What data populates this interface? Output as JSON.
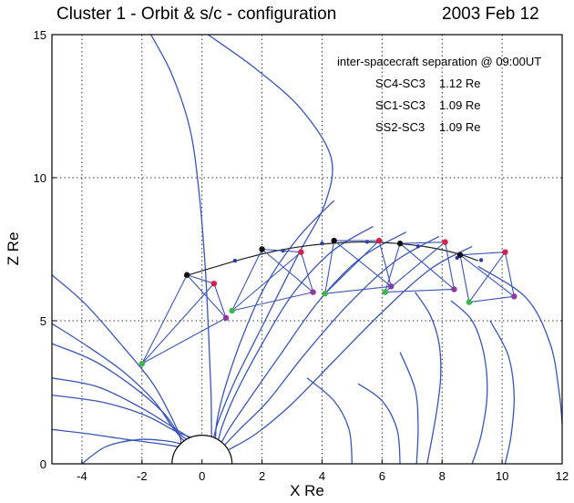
{
  "header": {
    "title": "Cluster 1 - Orbit & s/c - configuration",
    "date": "2003 Feb 12"
  },
  "annotation": {
    "heading": "inter-spacecraft separation @ 09:00UT",
    "rows": [
      {
        "pair": "SC4-SC3",
        "value": "1.12 Re"
      },
      {
        "pair": "SC1-SC3",
        "value": "1.09 Re"
      },
      {
        "pair": "SS2-SC3",
        "value": "1.09 Re"
      }
    ]
  },
  "colors": {
    "field_lines": "#3a55b8",
    "orbit": "#222222",
    "tetrahedron": "#3a55b8",
    "grid": "#333333",
    "sc_black": "#111111",
    "sc_red": "#d4204a",
    "sc_green": "#3cb54a",
    "sc_purple": "#8e3aa0",
    "sc_blue": "#2a3aa8"
  },
  "chart_data": {
    "type": "line",
    "xlabel": "X Re",
    "ylabel": "Z Re",
    "xlim": [
      -5,
      12
    ],
    "ylim": [
      0,
      15
    ],
    "xticks": [
      -4,
      -2,
      0,
      2,
      4,
      6,
      8,
      10,
      12
    ],
    "yticks": [
      0,
      5,
      10,
      15
    ],
    "grid": true,
    "earth": {
      "center": [
        0,
        0
      ],
      "radius": 1
    },
    "orbit": [
      [
        -0.6,
        6.55
      ],
      [
        0.5,
        6.9
      ],
      [
        1.5,
        7.2
      ],
      [
        2.5,
        7.45
      ],
      [
        3.5,
        7.62
      ],
      [
        4.5,
        7.72
      ],
      [
        5.5,
        7.75
      ],
      [
        6.5,
        7.7
      ],
      [
        7.5,
        7.58
      ],
      [
        8.5,
        7.35
      ],
      [
        9.2,
        7.1
      ]
    ],
    "orbit_markers": [
      [
        1.1,
        7.1
      ],
      [
        2.7,
        7.45
      ],
      [
        4.0,
        7.7
      ],
      [
        5.5,
        7.76
      ],
      [
        7.2,
        7.6
      ],
      [
        8.5,
        7.2
      ],
      [
        9.3,
        7.12
      ]
    ],
    "field_lines": [
      [
        [
          -5,
          6.6
        ],
        [
          -3.9,
          5.6
        ],
        [
          -2.8,
          4.3
        ],
        [
          -1.7,
          2.9
        ],
        [
          -1.1,
          1.8
        ],
        [
          -0.75,
          1.0
        ],
        [
          -0.7,
          0.7
        ]
      ],
      [
        [
          -5,
          4.9
        ],
        [
          -3.8,
          4.1
        ],
        [
          -2.6,
          3.2
        ],
        [
          -1.6,
          2.2
        ],
        [
          -1.0,
          1.3
        ],
        [
          -0.6,
          0.8
        ]
      ],
      [
        [
          -5,
          4.2
        ],
        [
          -3.6,
          3.6
        ],
        [
          -2.3,
          2.7
        ],
        [
          -1.3,
          1.8
        ],
        [
          -0.8,
          1.1
        ],
        [
          -0.5,
          0.85
        ]
      ],
      [
        [
          -5,
          3.0
        ],
        [
          -3.5,
          2.7
        ],
        [
          -2.1,
          2.0
        ],
        [
          -1.0,
          1.3
        ],
        [
          -0.4,
          0.9
        ]
      ],
      [
        [
          -5,
          2.4
        ],
        [
          -3.3,
          2.15
        ],
        [
          -1.9,
          1.7
        ],
        [
          -0.9,
          1.15
        ],
        [
          -0.35,
          0.92
        ]
      ],
      [
        [
          -5,
          1.2
        ],
        [
          -3.8,
          1.05
        ],
        [
          -2.5,
          0.85
        ],
        [
          -1.4,
          0.7
        ],
        [
          -0.8,
          0.6
        ]
      ],
      [
        [
          -4.0,
          0
        ],
        [
          -3.2,
          0.6
        ],
        [
          -2.1,
          0.85
        ],
        [
          -1.2,
          0.8
        ],
        [
          -0.7,
          0.7
        ]
      ],
      [
        [
          0.2,
          15
        ],
        [
          1.8,
          13.8
        ],
        [
          3.3,
          12.4
        ],
        [
          4.3,
          10.7
        ],
        [
          4.1,
          9.1
        ],
        [
          3.2,
          7.3
        ],
        [
          2.1,
          5.0
        ],
        [
          1.1,
          2.9
        ],
        [
          0.55,
          1.5
        ],
        [
          0.4,
          0.95
        ]
      ],
      [
        [
          -1.7,
          15
        ],
        [
          -1.0,
          13.6
        ],
        [
          -0.4,
          11.7
        ],
        [
          -0.1,
          9.5
        ],
        [
          0.1,
          7.0
        ],
        [
          0.22,
          4.5
        ],
        [
          0.3,
          2.5
        ],
        [
          0.32,
          0.95
        ]
      ],
      [
        [
          4.4,
          9.2
        ],
        [
          3.2,
          7.9
        ],
        [
          2.1,
          6.2
        ],
        [
          1.3,
          4.3
        ],
        [
          0.75,
          2.6
        ],
        [
          0.5,
          1.5
        ],
        [
          0.45,
          0.9
        ]
      ],
      [
        [
          5.7,
          8.3
        ],
        [
          4.3,
          7.4
        ],
        [
          3.0,
          5.9
        ],
        [
          1.9,
          4.0
        ],
        [
          1.1,
          2.4
        ],
        [
          0.7,
          1.4
        ],
        [
          0.55,
          0.85
        ]
      ],
      [
        [
          6.8,
          8.1
        ],
        [
          5.3,
          7.2
        ],
        [
          3.9,
          5.7
        ],
        [
          2.6,
          3.8
        ],
        [
          1.6,
          2.3
        ],
        [
          0.95,
          1.3
        ],
        [
          0.65,
          0.75
        ]
      ],
      [
        [
          7.9,
          7.95
        ],
        [
          6.4,
          7.05
        ],
        [
          4.9,
          5.6
        ],
        [
          3.4,
          3.8
        ],
        [
          2.2,
          2.2
        ],
        [
          1.25,
          1.2
        ],
        [
          0.75,
          0.65
        ]
      ],
      [
        [
          9.0,
          7.6
        ],
        [
          7.6,
          6.8
        ],
        [
          6.0,
          5.3
        ],
        [
          4.4,
          3.6
        ],
        [
          3.0,
          2.1
        ],
        [
          1.8,
          1.05
        ],
        [
          0.9,
          0.5
        ]
      ],
      [
        [
          7.1,
          6.0
        ],
        [
          7.6,
          5.2
        ],
        [
          7.9,
          4.2
        ],
        [
          7.95,
          3.0
        ],
        [
          7.8,
          1.7
        ],
        [
          7.5,
          0
        ]
      ],
      [
        [
          8.3,
          5.7
        ],
        [
          9.0,
          5.0
        ],
        [
          9.4,
          3.8
        ],
        [
          9.5,
          2.4
        ],
        [
          9.3,
          1.0
        ],
        [
          9.0,
          0
        ]
      ],
      [
        [
          9.6,
          5.0
        ],
        [
          10.2,
          3.8
        ],
        [
          10.4,
          2.4
        ],
        [
          10.3,
          1.0
        ],
        [
          10.1,
          0
        ]
      ],
      [
        [
          3.5,
          3.0
        ],
        [
          4.4,
          2.2
        ],
        [
          4.9,
          1.2
        ],
        [
          5.0,
          0
        ]
      ],
      [
        [
          5.2,
          2.8
        ],
        [
          6.0,
          2.2
        ],
        [
          6.5,
          1.2
        ],
        [
          6.6,
          0
        ]
      ],
      [
        [
          6.6,
          3.9
        ],
        [
          7.1,
          2.6
        ],
        [
          7.2,
          1.3
        ],
        [
          7.15,
          0
        ]
      ],
      [
        [
          9.2,
          6.9
        ],
        [
          10.8,
          5.8
        ],
        [
          11.6,
          4.2
        ],
        [
          11.9,
          2.5
        ],
        [
          12,
          1.4
        ]
      ]
    ],
    "tetrahedra": [
      {
        "sc": [
          [
            -0.5,
            6.6
          ],
          [
            0.4,
            6.3
          ],
          [
            0.8,
            5.1
          ],
          [
            -2.0,
            3.5
          ]
        ]
      },
      {
        "sc": [
          [
            2.0,
            7.5
          ],
          [
            3.3,
            7.4
          ],
          [
            3.7,
            6.0
          ],
          [
            1.0,
            5.35
          ]
        ]
      },
      {
        "sc": [
          [
            4.4,
            7.8
          ],
          [
            5.9,
            7.8
          ],
          [
            6.3,
            6.2
          ],
          [
            4.1,
            5.95
          ]
        ]
      },
      {
        "sc": [
          [
            6.6,
            7.7
          ],
          [
            8.1,
            7.75
          ],
          [
            8.4,
            6.1
          ],
          [
            6.1,
            6.0
          ]
        ]
      },
      {
        "sc": [
          [
            8.6,
            7.3
          ],
          [
            10.1,
            7.4
          ],
          [
            10.4,
            5.85
          ],
          [
            8.9,
            5.65
          ]
        ]
      }
    ]
  }
}
